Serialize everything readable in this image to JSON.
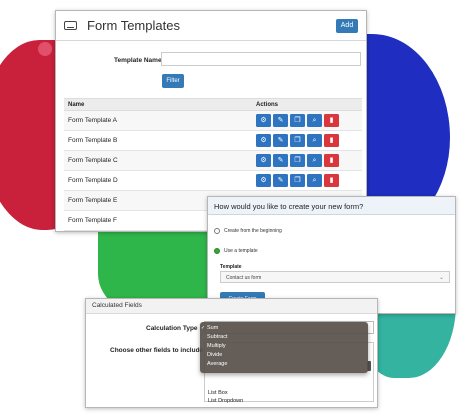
{
  "form_templates": {
    "title": "Form Templates",
    "add_label": "Add",
    "template_name_label": "Template Name",
    "template_name_value": "",
    "filter_label": "Filter",
    "columns": [
      "Name",
      "Actions"
    ],
    "rows": [
      "Form Template A",
      "Form Template B",
      "Form Template C",
      "Form Template D",
      "Form Template E",
      "Form Template F"
    ],
    "action_icons": [
      "gear-icon",
      "edit-icon",
      "copy-icon",
      "search-icon",
      "trash-icon"
    ],
    "colors": {
      "primary": "#337ab7",
      "danger": "#d9363e"
    }
  },
  "create_dialog": {
    "title": "How would you like to create your new form?",
    "options": [
      "Create from the beginning",
      "Use a template"
    ],
    "selected_option": "Use a template",
    "template_label": "Template",
    "template_value": "Contact us form",
    "create_label": "Create Form"
  },
  "calculated": {
    "title": "Calculated Fields",
    "calc_type_label": "Calculation Type",
    "other_fields_label": "Choose other fields to include",
    "list_items": [
      "List Box",
      "List Dropdown"
    ],
    "dropdown_options": [
      "Sum",
      "Subtract",
      "Multiply",
      "Divide",
      "Average"
    ],
    "selected_calc": "Sum"
  }
}
